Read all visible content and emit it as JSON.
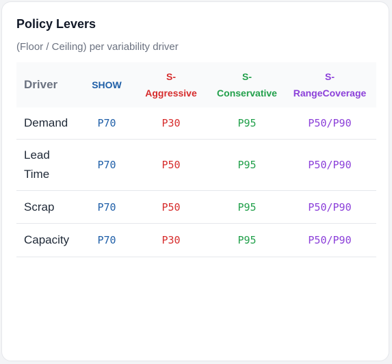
{
  "panel": {
    "title": "Policy Levers",
    "subtitle": "(Floor / Ceiling) per variability driver"
  },
  "colors": {
    "show": "#1f5fa8",
    "aggressive": "#d62c2c",
    "conservative": "#22a04b",
    "range_coverage": "#8b3fd9"
  },
  "table": {
    "headers": [
      "Driver",
      "SHOW",
      "S-\nAggressive",
      "S-\nConservative",
      "S-\nRangeCoverage"
    ],
    "rows": [
      [
        "Demand",
        "P70",
        "P30",
        "P95",
        "P50/P90"
      ],
      [
        "Lead\nTime",
        "P70",
        "P50",
        "P95",
        "P50/P90"
      ],
      [
        "Scrap",
        "P70",
        "P50",
        "P95",
        "P50/P90"
      ],
      [
        "Capacity",
        "P70",
        "P30",
        "P95",
        "P50/P90"
      ]
    ]
  }
}
